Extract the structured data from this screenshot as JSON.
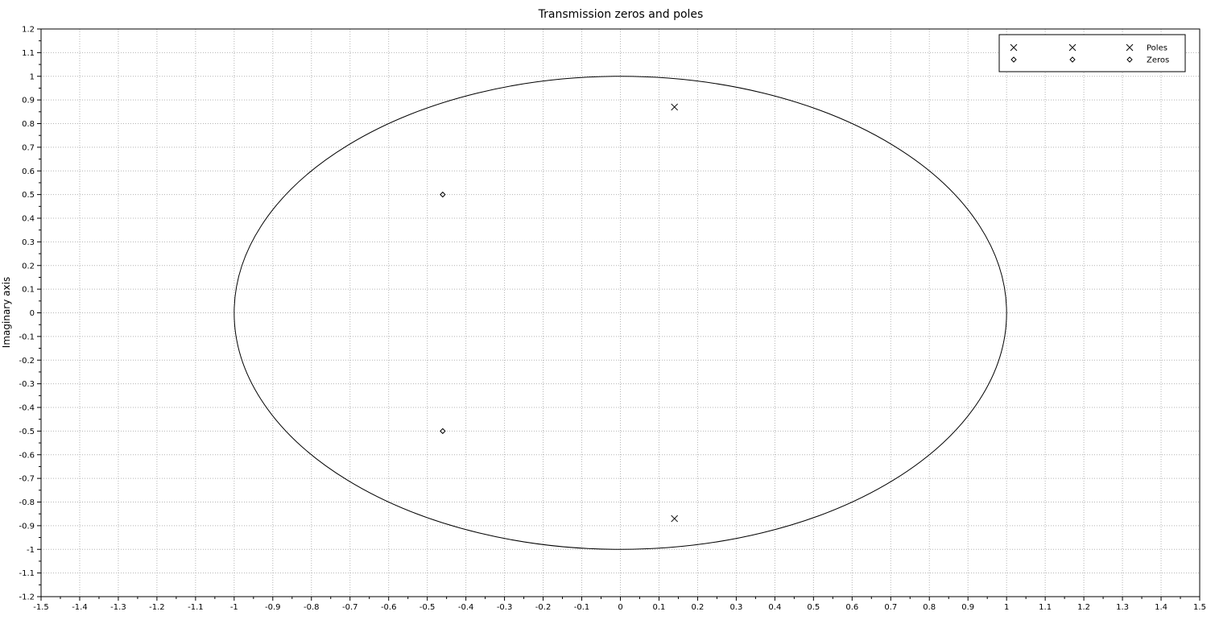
{
  "chart_data": {
    "type": "scatter",
    "title": "Transmission zeros and poles",
    "xlabel": "",
    "ylabel": "Imaginary axis",
    "xlim": [
      -1.5,
      1.5
    ],
    "ylim": [
      -1.2,
      1.2
    ],
    "x_ticks": [
      -1.5,
      -1.4,
      -1.3,
      -1.2,
      -1.1,
      -1,
      -0.9,
      -0.8,
      -0.7,
      -0.6,
      -0.5,
      -0.4,
      -0.3,
      -0.2,
      -0.1,
      0,
      0.1,
      0.2,
      0.3,
      0.4,
      0.5,
      0.6,
      0.7,
      0.8,
      0.9,
      1,
      1.1,
      1.2,
      1.3,
      1.4,
      1.5
    ],
    "y_ticks": [
      -1.2,
      -1.1,
      -1,
      -0.9,
      -0.8,
      -0.7,
      -0.6,
      -0.5,
      -0.4,
      -0.3,
      -0.2,
      -0.1,
      0,
      0.1,
      0.2,
      0.3,
      0.4,
      0.5,
      0.6,
      0.7,
      0.8,
      0.9,
      1,
      1.1,
      1.2
    ],
    "grid": true,
    "legend_position": "top-right",
    "unit_circle": {
      "center": [
        0,
        0
      ],
      "radius": 1
    },
    "series": [
      {
        "name": "Poles",
        "marker": "x",
        "points": [
          [
            0.14,
            0.87
          ],
          [
            0.14,
            -0.87
          ]
        ]
      },
      {
        "name": "Zeros",
        "marker": "diamond",
        "points": [
          [
            -0.46,
            0.5
          ],
          [
            -0.46,
            -0.5
          ]
        ]
      }
    ],
    "colors": {
      "axis": "#000000",
      "grid": "#b4b4b4",
      "marks": "#000000"
    }
  }
}
